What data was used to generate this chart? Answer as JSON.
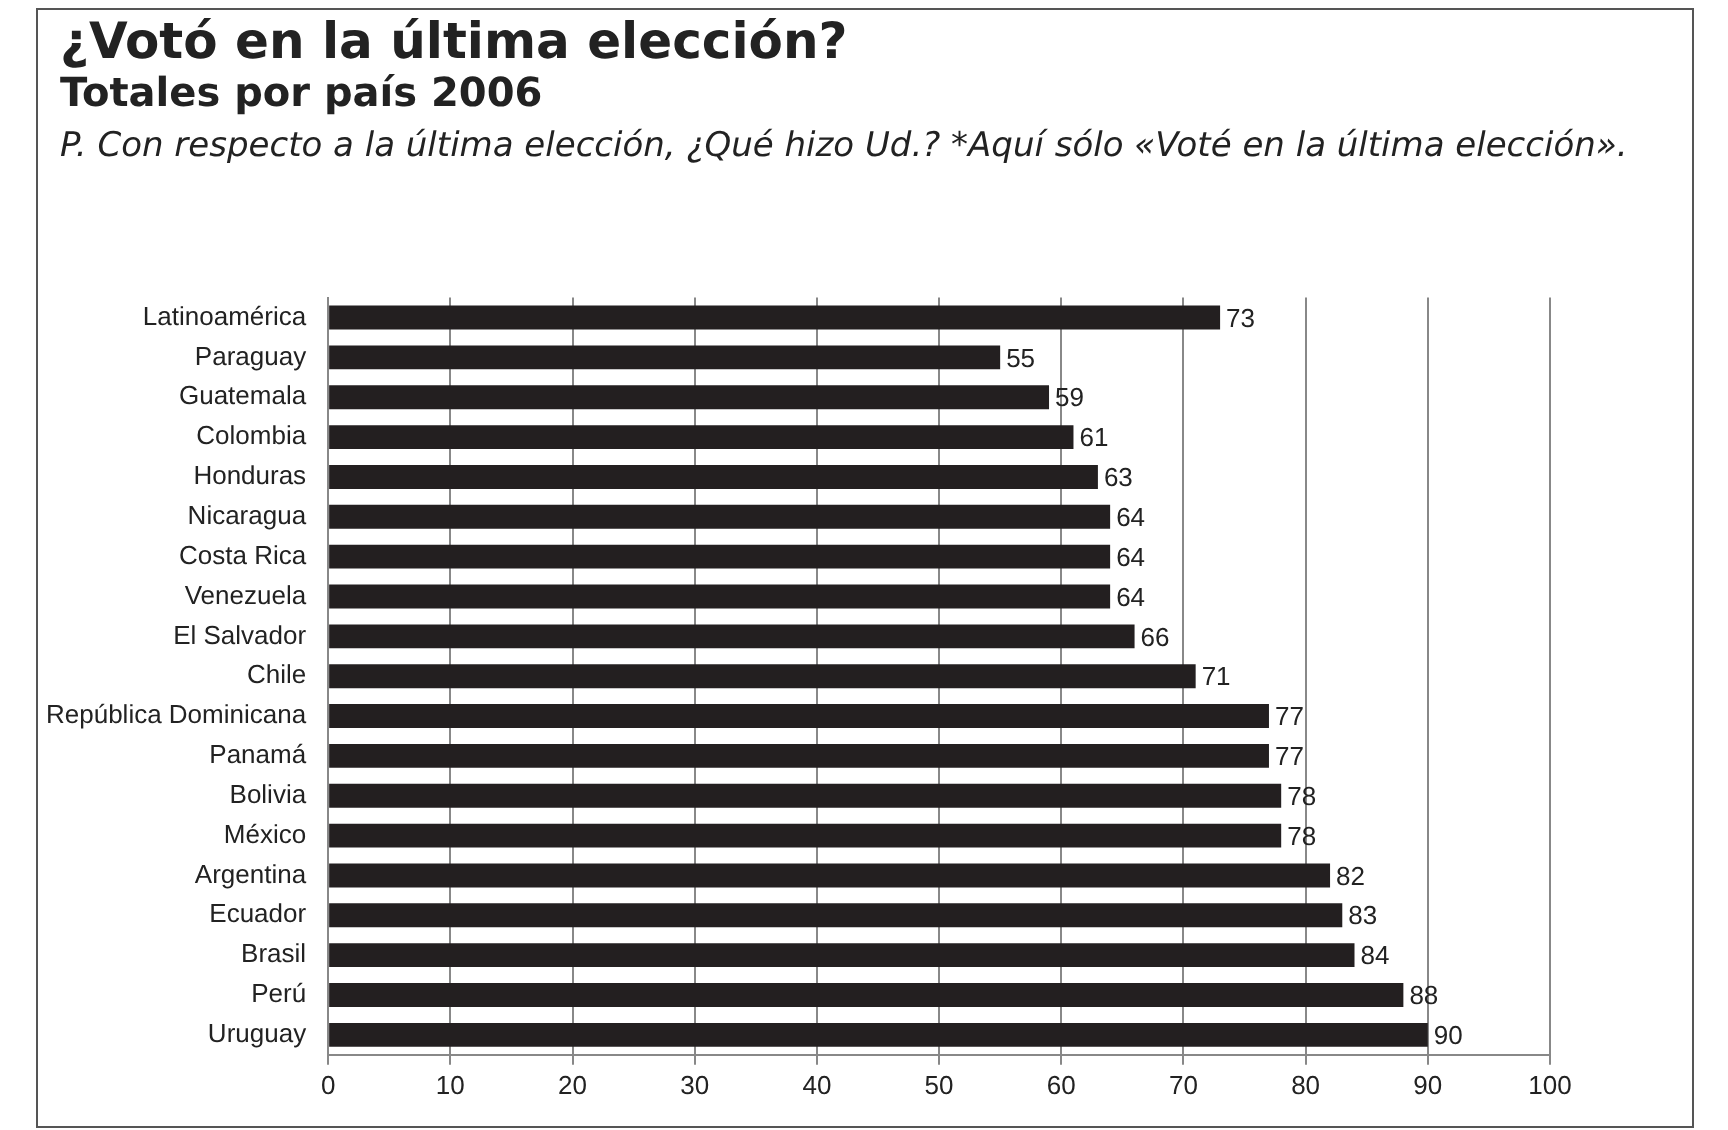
{
  "chart_data": {
    "type": "bar",
    "orientation": "horizontal",
    "title": "¿Votó en la última elección?",
    "subtitle": "Totales por país 2006",
    "annotations": [
      "P. Con respecto a la última elección, ¿Qué hizo Ud.? *Aquí sólo «Voté en la última elección»."
    ],
    "categories": [
      "Latinoamérica",
      "Paraguay",
      "Guatemala",
      "Colombia",
      "Honduras",
      "Nicaragua",
      "Costa Rica",
      "Venezuela",
      "El Salvador",
      "Chile",
      "República Dominicana",
      "Panamá",
      "Bolivia",
      "México",
      "Argentina",
      "Ecuador",
      "Brasil",
      "Perú",
      "Uruguay"
    ],
    "values": [
      73,
      55,
      59,
      61,
      63,
      64,
      64,
      64,
      66,
      71,
      77,
      77,
      78,
      78,
      82,
      83,
      84,
      88,
      90
    ],
    "color": "#231f20",
    "xlim": [
      0,
      100
    ],
    "xticks": [
      0,
      10,
      20,
      30,
      40,
      50,
      60,
      70,
      80,
      90,
      100
    ],
    "grid": "x",
    "data_labels": true,
    "legend": false
  }
}
